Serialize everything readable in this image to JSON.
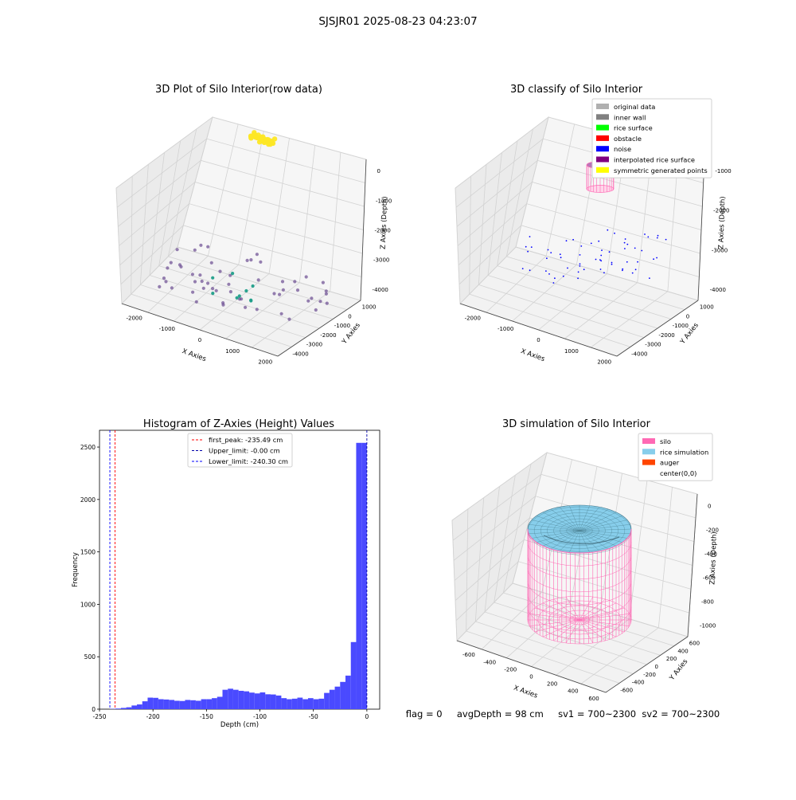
{
  "figure": {
    "suptitle": "SJSJR01 2025-08-23 04:23:07",
    "status_line": "flag = 0     avgDepth = 98 cm     sv1 = 700~2300  sv2 = 700~2300"
  },
  "chart_data": [
    {
      "type": "scatter",
      "title": "3D Plot of Silo Interior(row data)",
      "projection": "3d",
      "xlabel": "X Axies",
      "ylabel": "Y Axies",
      "zlabel": "Z Axies (Depth)",
      "xticks": [
        "-2000",
        "-1000",
        "0",
        "1000",
        "2000"
      ],
      "yticks": [
        "1000",
        "0",
        "-1000",
        "-2000",
        "-3000",
        "-4000"
      ],
      "zticks": [
        "0",
        "-1000",
        "-2000",
        "-3000",
        "-4000"
      ],
      "xlim": [
        -2300,
        2600
      ],
      "ylim": [
        -4200,
        1300
      ],
      "zlim": [
        -4500,
        200
      ],
      "grid": true,
      "colormap": "viridis (by depth)",
      "clusters": [
        {
          "name": "",
          "color": "#fde725",
          "x_range": [
            -300,
            300
          ],
          "y_range": [
            500,
            900
          ],
          "z": 0
        },
        {
          "name": "",
          "color": "#6b4b91",
          "x_range": [
            -2000,
            2200
          ],
          "y_range": [
            -3200,
            1000
          ],
          "z": -4000
        },
        {
          "name": "",
          "color": "#1f9e89",
          "x_range": [
            -700,
            700
          ],
          "y_range": [
            -2500,
            -1000
          ],
          "z": -4000
        }
      ]
    },
    {
      "type": "scatter",
      "title": "3D classify of Silo Interior",
      "projection": "3d",
      "xlabel": "X Axies",
      "ylabel": "Y Axies",
      "zlabel": "Z Axies (Depth)",
      "xticks": [
        "-2000",
        "-1000",
        "0",
        "1000",
        "2000"
      ],
      "yticks": [
        "1000",
        "0",
        "-1000",
        "-2000",
        "-3000",
        "-4000"
      ],
      "zticks": [
        "-1000",
        "-2000",
        "-3000",
        "-4000"
      ],
      "xlim": [
        -2300,
        2600
      ],
      "ylim": [
        -4200,
        1300
      ],
      "zlim": [
        -4500,
        200
      ],
      "grid": true,
      "legend_position": "top-right",
      "legend": [
        {
          "label": "original data",
          "color": "#b0b0b0"
        },
        {
          "label": "inner wall",
          "color": "#808080"
        },
        {
          "label": "rice surface",
          "color": "#00ff00"
        },
        {
          "label": "obstacle",
          "color": "#ff0000"
        },
        {
          "label": "noise",
          "color": "#0000ff"
        },
        {
          "label": "interpolated rice surface",
          "color": "#800080"
        },
        {
          "label": "symmetric generated points",
          "color": "#ffff00"
        }
      ],
      "silo_cylinder": {
        "radius": 300,
        "z_top": 0,
        "z_bottom": -1000,
        "color": "#ff69b4"
      },
      "noise_points": {
        "color": "#0000ff",
        "z": -4000
      }
    },
    {
      "type": "bar",
      "title": "Histogram of Z-Axies (Height) Values",
      "xlabel": "Depth (cm)",
      "ylabel": "Frequency",
      "xlim": [
        -250,
        12
      ],
      "ylim": [
        0,
        2660
      ],
      "xticks": [
        -250,
        -200,
        -150,
        -100,
        -50,
        0
      ],
      "yticks": [
        0,
        500,
        1000,
        1500,
        2000,
        2500
      ],
      "bar_color": "#4a4aff",
      "bin_width": 5,
      "bin_starts": [
        -240,
        -235,
        -230,
        -225,
        -220,
        -215,
        -210,
        -205,
        -200,
        -195,
        -190,
        -185,
        -180,
        -175,
        -170,
        -165,
        -160,
        -155,
        -150,
        -145,
        -140,
        -135,
        -130,
        -125,
        -120,
        -115,
        -110,
        -105,
        -100,
        -95,
        -90,
        -85,
        -80,
        -75,
        -70,
        -65,
        -60,
        -55,
        -50,
        -45,
        -40,
        -35,
        -30,
        -25,
        -20,
        -15,
        -10,
        -5
      ],
      "values": [
        3,
        6,
        12,
        18,
        35,
        45,
        75,
        110,
        108,
        95,
        92,
        88,
        80,
        78,
        88,
        85,
        80,
        95,
        95,
        105,
        118,
        185,
        195,
        185,
        175,
        170,
        158,
        150,
        160,
        142,
        140,
        130,
        105,
        95,
        100,
        110,
        95,
        105,
        95,
        100,
        155,
        185,
        215,
        260,
        320,
        640,
        2540,
        2540
      ],
      "vlines": [
        {
          "label": "first_peak: -235.49 cm",
          "x": -235.49,
          "color": "#ff0000"
        },
        {
          "label": "Upper_limit: -0.00 cm",
          "x": -0.0,
          "color": "#0000aa"
        },
        {
          "label": "Lower_limit: -240.30 cm",
          "x": -240.3,
          "color": "#0000ff"
        }
      ],
      "legend_position": "top-center"
    },
    {
      "type": "surface",
      "title": "3D simulation of Silo Interior",
      "projection": "3d",
      "xlabel": "X Axies",
      "ylabel": "Y Axies",
      "zlabel": "Z Axies (Depth)",
      "xticks": [
        "-600",
        "-400",
        "-200",
        "0",
        "200",
        "400",
        "600"
      ],
      "yticks": [
        "600",
        "400",
        "200",
        "0",
        "-200",
        "-400",
        "-600"
      ],
      "zticks": [
        "0",
        "-200",
        "-400",
        "-600",
        "-800",
        "-1000"
      ],
      "xlim": [
        -650,
        650
      ],
      "ylim": [
        -650,
        650
      ],
      "zlim": [
        -1100,
        100
      ],
      "grid": true,
      "legend_position": "top-right",
      "legend": [
        {
          "label": "silo",
          "color": "#ff69b4"
        },
        {
          "label": "rice simulation",
          "color": "#87ceeb"
        },
        {
          "label": "auger",
          "color": "#ff4500"
        },
        {
          "label": "center(0,0)",
          "color": "#ffffff"
        }
      ],
      "silo_cylinder": {
        "radius": 500,
        "z_top": 0,
        "z_bottom": -1000,
        "color": "#ff69b4"
      },
      "rice_surface": {
        "radius": 500,
        "z": -98,
        "color": "#87ceeb"
      }
    }
  ]
}
